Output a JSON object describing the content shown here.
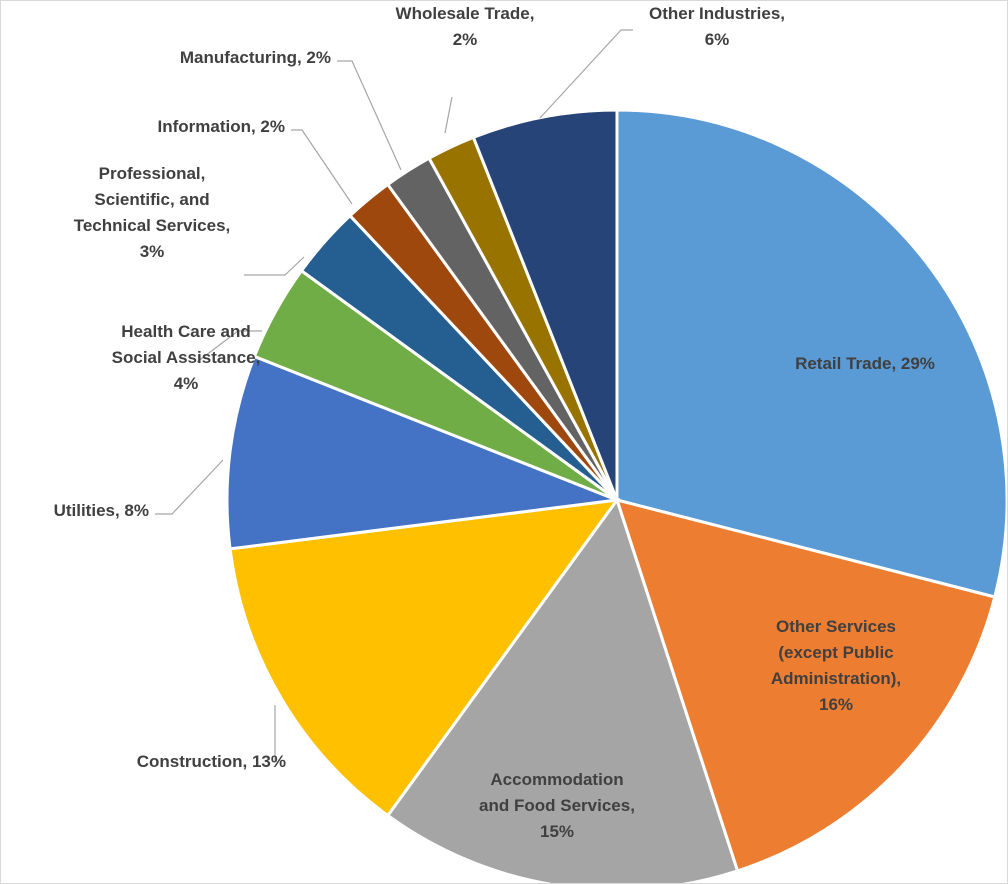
{
  "chart_data": {
    "type": "pie",
    "title": "",
    "start_angle_deg": 0,
    "direction": "clockwise",
    "slices": [
      {
        "category": "Retail Trade",
        "value": 29,
        "color": "#5B9BD5",
        "label": [
          "Retail Trade, 29%"
        ]
      },
      {
        "category": "Other Services (except Public Administration)",
        "value": 16,
        "color": "#ED7D31",
        "label": [
          "Other Services",
          "(except Public",
          "Administration),",
          "16%"
        ]
      },
      {
        "category": "Accommodation and Food Services",
        "value": 15,
        "color": "#A5A5A5",
        "label": [
          "Accommodation",
          "and Food Services,",
          "15%"
        ]
      },
      {
        "category": "Construction",
        "value": 13,
        "color": "#FFC000",
        "label": [
          "Construction, 13%"
        ]
      },
      {
        "category": "Utilities",
        "value": 8,
        "color": "#4472C4",
        "label": [
          "Utilities, 8%"
        ]
      },
      {
        "category": "Health Care and Social Assistance",
        "value": 4,
        "color": "#70AD47",
        "label": [
          "Health Care and",
          "Social Assistance,",
          "4%"
        ]
      },
      {
        "category": "Professional, Scientific, and Technical Services",
        "value": 3,
        "color": "#255E91",
        "label": [
          "Professional,",
          "Scientific, and",
          "Technical Services,",
          "3%"
        ]
      },
      {
        "category": "Information",
        "value": 2,
        "color": "#9E480E",
        "label": [
          "Information, 2%"
        ]
      },
      {
        "category": "Manufacturing",
        "value": 2,
        "color": "#636363",
        "label": [
          "Manufacturing, 2%"
        ]
      },
      {
        "category": "Wholesale Trade",
        "value": 2,
        "color": "#997300",
        "label": [
          "Wholesale Trade,",
          "2%"
        ]
      },
      {
        "category": "Other Industries",
        "value": 6,
        "color": "#264478",
        "label": [
          "Other Industries,",
          "6%"
        ]
      }
    ],
    "legend": "none",
    "data_labels": "category name, percentage"
  }
}
